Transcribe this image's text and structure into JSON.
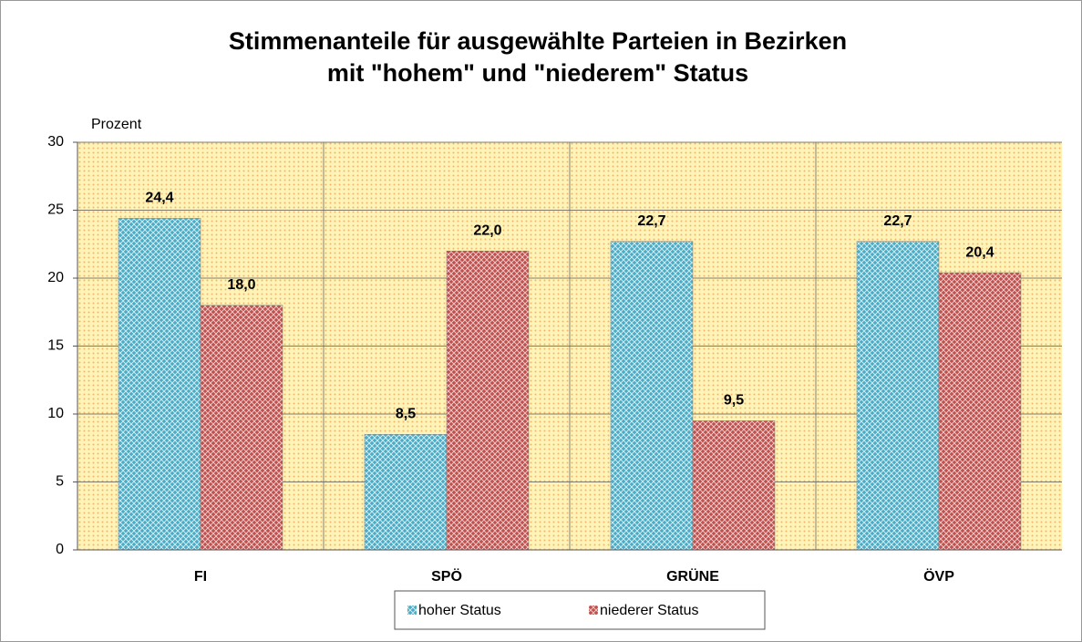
{
  "chart_data": {
    "type": "bar",
    "title": "Stimmenanteile für ausgewählte Parteien in Bezirken mit \"hohem\" und \"niederem\" Status",
    "y_label": "Prozent",
    "categories": [
      "FI",
      "SPÖ",
      "GRÜNE",
      "ÖVP"
    ],
    "series": [
      {
        "name": "hoher Status",
        "color": "#4aacc6",
        "values": [
          24.4,
          8.5,
          22.7,
          22.7
        ],
        "value_labels": [
          "24,4",
          "8,5",
          "22,7",
          "22,7"
        ]
      },
      {
        "name": "niederer Status",
        "color": "#c0504d",
        "values": [
          18.0,
          22.0,
          9.5,
          20.4
        ],
        "value_labels": [
          "18,0",
          "22,0",
          "9,5",
          "20,4"
        ]
      }
    ],
    "ylim": [
      0,
      30
    ],
    "yticks": [
      0,
      5,
      10,
      15,
      20,
      25,
      30
    ],
    "grid": true,
    "legend": "bottom"
  }
}
